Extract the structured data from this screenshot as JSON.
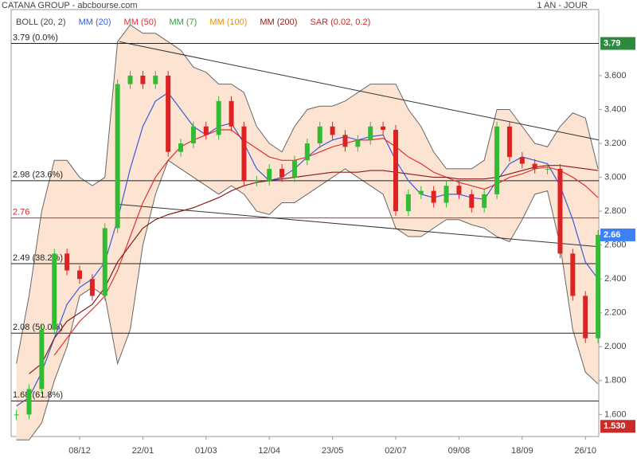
{
  "chart_data": {
    "type": "candlestick",
    "title": "CATANA GROUP - abcbourse.com",
    "period": "1 AN - JOUR",
    "legend": [
      {
        "name": "BOLL (20, 2)",
        "color": "#444444"
      },
      {
        "name": "MM (20)",
        "color": "#3b5bdb"
      },
      {
        "name": "MM (50)",
        "color": "#e03131"
      },
      {
        "name": "MM (7)",
        "color": "#2f9e44"
      },
      {
        "name": "MM (100)",
        "color": "#f08c00"
      },
      {
        "name": "MM (200)",
        "color": "#8b1a1a"
      },
      {
        "name": "SAR (0.02, 0.2)",
        "color": "#c92a2a"
      }
    ],
    "categories": [
      null,
      null,
      null,
      null,
      null,
      "08/12",
      null,
      null,
      null,
      null,
      "22/01",
      null,
      null,
      null,
      null,
      "01/03",
      null,
      null,
      null,
      null,
      "12/04",
      null,
      null,
      null,
      null,
      "23/05",
      null,
      null,
      null,
      null,
      "02/07",
      null,
      null,
      null,
      null,
      "09/08",
      null,
      null,
      null,
      null,
      "18/09",
      null,
      null,
      null,
      null,
      "26/10",
      null
    ],
    "close": [
      1.6,
      1.75,
      2.1,
      2.55,
      2.45,
      2.4,
      2.3,
      2.7,
      3.55,
      3.6,
      3.55,
      3.6,
      3.15,
      3.2,
      3.3,
      3.25,
      3.45,
      3.3,
      2.98,
      2.98,
      3.05,
      3.0,
      3.1,
      3.2,
      3.3,
      3.25,
      3.18,
      3.22,
      3.3,
      3.28,
      2.8,
      2.9,
      2.92,
      2.85,
      2.95,
      2.9,
      2.82,
      2.9,
      3.3,
      3.12,
      3.08,
      3.05,
      3.05,
      2.55,
      2.3,
      2.05,
      2.66
    ],
    "up_color": "#33bb33",
    "down_color": "#dd2222",
    "bollinger": {
      "fill": "#fde4d2",
      "color": "#666666",
      "upper": [
        1.9,
        2.3,
        2.8,
        3.1,
        3.1,
        3.0,
        2.95,
        3.0,
        3.8,
        3.9,
        3.85,
        3.85,
        3.8,
        3.75,
        3.65,
        3.62,
        3.55,
        3.55,
        3.5,
        3.3,
        3.2,
        3.15,
        3.3,
        3.4,
        3.42,
        3.42,
        3.45,
        3.5,
        3.55,
        3.55,
        3.55,
        3.4,
        3.3,
        3.15,
        3.05,
        3.05,
        3.05,
        3.1,
        3.4,
        3.4,
        3.3,
        3.2,
        3.18,
        3.3,
        3.38,
        3.35,
        3.05
      ],
      "lower": [
        1.45,
        1.45,
        1.55,
        1.8,
        2.0,
        2.3,
        2.35,
        2.3,
        1.9,
        2.1,
        2.6,
        2.9,
        3.1,
        3.05,
        3.0,
        2.95,
        2.9,
        2.95,
        2.9,
        2.8,
        2.78,
        2.85,
        2.85,
        2.9,
        2.95,
        3.0,
        3.05,
        3.0,
        2.95,
        2.9,
        2.7,
        2.65,
        2.65,
        2.7,
        2.75,
        2.75,
        2.72,
        2.7,
        2.65,
        2.62,
        2.75,
        2.9,
        2.92,
        2.6,
        2.1,
        1.85,
        1.78
      ]
    },
    "moving_averages": [
      {
        "color": "#3b5bdb",
        "values": [
          1.65,
          1.7,
          1.85,
          2.05,
          2.25,
          2.35,
          2.4,
          2.5,
          2.75,
          3.05,
          3.3,
          3.45,
          3.5,
          3.4,
          3.3,
          3.25,
          3.3,
          3.32,
          3.2,
          3.05,
          2.98,
          3.0,
          3.05,
          3.12,
          3.18,
          3.22,
          3.24,
          3.22,
          3.24,
          3.25,
          3.1,
          2.98,
          2.9,
          2.88,
          2.9,
          2.9,
          2.88,
          2.87,
          2.98,
          3.08,
          3.12,
          3.1,
          3.08,
          2.95,
          2.75,
          2.5,
          2.4
        ]
      },
      {
        "color": "#e03131",
        "values": [
          null,
          null,
          null,
          1.95,
          2.05,
          2.15,
          2.22,
          2.3,
          2.45,
          2.65,
          2.85,
          3.0,
          3.1,
          3.18,
          3.22,
          3.25,
          3.28,
          3.28,
          3.22,
          3.17,
          3.12,
          3.1,
          3.1,
          3.12,
          3.15,
          3.18,
          3.2,
          3.22,
          3.22,
          3.23,
          3.18,
          3.12,
          3.08,
          3.03,
          3.0,
          2.97,
          2.95,
          2.93,
          2.96,
          3.0,
          3.02,
          3.05,
          3.06,
          3.04,
          3.0,
          2.95,
          2.88
        ]
      },
      {
        "color": "#8b1a1a",
        "values": [
          null,
          1.84,
          1.9,
          2.05,
          2.15,
          2.2,
          2.25,
          2.35,
          2.5,
          2.6,
          2.7,
          2.75,
          2.78,
          2.8,
          2.82,
          2.85,
          2.88,
          2.92,
          2.95,
          2.97,
          2.98,
          2.99,
          3.0,
          3.01,
          3.02,
          3.03,
          3.03,
          3.03,
          3.04,
          3.04,
          3.03,
          3.02,
          3.01,
          3.0,
          3.0,
          2.99,
          2.99,
          2.99,
          3.0,
          3.02,
          3.04,
          3.06,
          3.07,
          3.07,
          3.06,
          3.05,
          3.04
        ]
      }
    ],
    "trendlines": [
      {
        "color": "#333333",
        "values": [
          3.8,
          3.22
        ]
      },
      {
        "color": "#333333",
        "values": [
          2.84,
          2.59
        ]
      }
    ],
    "levels": [
      {
        "value": 3.79,
        "label": "3.79  (0.0%)",
        "color": "#222222"
      },
      {
        "value": 2.98,
        "label": "2.98  (23.6%)",
        "color": "#222222"
      },
      {
        "value": 2.76,
        "label": "2.76",
        "color": "#c92a2a"
      },
      {
        "value": 2.49,
        "label": "2.49  (38.2%)",
        "color": "#222222"
      },
      {
        "value": 2.08,
        "label": "2.08  (50.0%)",
        "color": "#222222"
      },
      {
        "value": 1.68,
        "label": "1.68  (61.8%)",
        "color": "#222222"
      }
    ],
    "badges": [
      {
        "value": 3.79,
        "label": "3.79",
        "color": "#2b8a3e"
      },
      {
        "value": 2.66,
        "label": "2.66",
        "color": "#3b82f6"
      },
      {
        "value": 1.53,
        "label": "1.530",
        "color": "#c92a2a"
      }
    ],
    "ylim": [
      1.47,
      3.99
    ],
    "yticks": [
      {
        "value": 1.6,
        "label": "1.600"
      },
      {
        "value": 1.8,
        "label": "1.800"
      },
      {
        "value": 2.0,
        "label": "2.000"
      },
      {
        "value": 2.2,
        "label": "2.200"
      },
      {
        "value": 2.4,
        "label": "2.400"
      },
      {
        "value": 2.6,
        "label": "2.600"
      },
      {
        "value": 2.8,
        "label": "2.800"
      },
      {
        "value": 3.0,
        "label": "3.000"
      },
      {
        "value": 3.2,
        "label": "3.200"
      },
      {
        "value": 3.4,
        "label": "3.400"
      },
      {
        "value": 3.6,
        "label": "3.600"
      }
    ]
  }
}
